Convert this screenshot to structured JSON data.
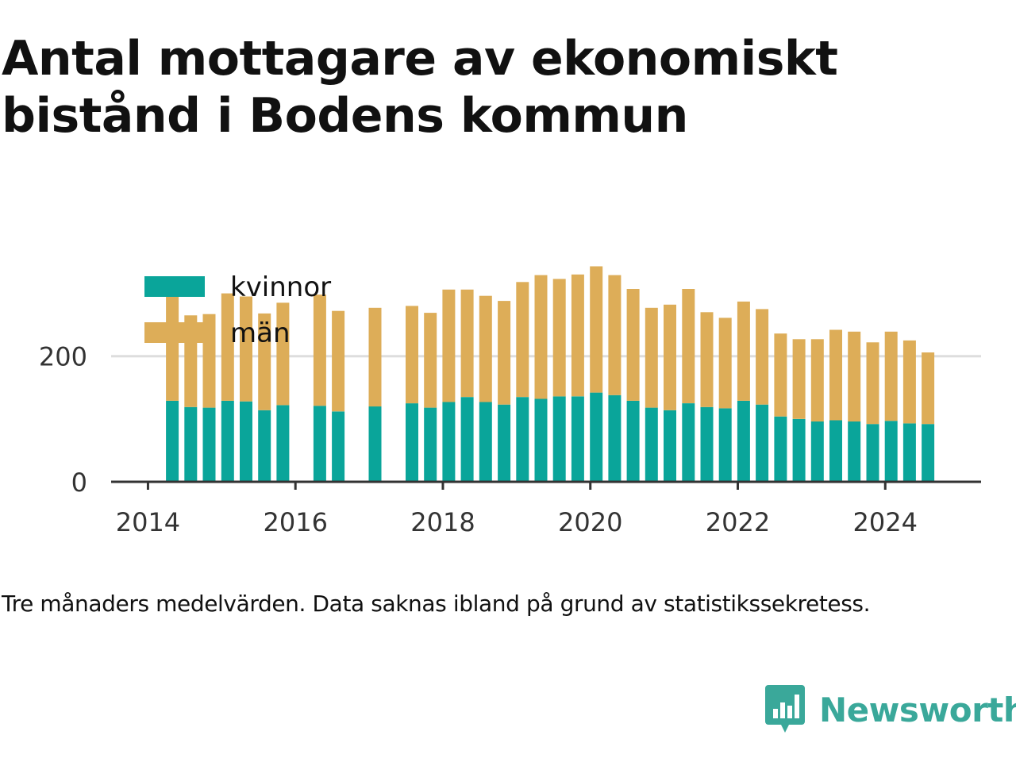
{
  "title": "Antal mottagare av ekonomiskt bistånd i Bodens kommun",
  "caption": "Tre månaders medelvärden. Data saknas ibland på grund av statistikssekretess.",
  "brand": {
    "name": "Newsworthy",
    "icon": "newsworthy-logo-icon",
    "color": "#3aa89a"
  },
  "colors": {
    "kvinnor": "#0aa59a",
    "man": "#ddad58",
    "gridline": "#dddddd",
    "axis": "#333333"
  },
  "chart_data": {
    "type": "bar",
    "stacked": true,
    "title": "",
    "xlabel": "",
    "ylabel": "",
    "ylim": [
      0,
      350
    ],
    "xlim": [
      2013.5,
      2025.3
    ],
    "grid": true,
    "yticks": [
      0,
      200
    ],
    "ytick_labels": [
      "0",
      "200"
    ],
    "xticks": [
      2014,
      2016,
      2018,
      2020,
      2022,
      2024
    ],
    "xtick_labels": [
      "2014",
      "2016",
      "2018",
      "2020",
      "2022",
      "2024"
    ],
    "legend_position": "top-left",
    "x": [
      2014.33,
      2014.58,
      2014.83,
      2015.08,
      2015.33,
      2015.58,
      2015.83,
      2016.33,
      2016.58,
      2017.08,
      2017.58,
      2017.83,
      2018.08,
      2018.33,
      2018.58,
      2018.83,
      2019.08,
      2019.33,
      2019.58,
      2019.83,
      2020.08,
      2020.33,
      2020.58,
      2020.83,
      2021.08,
      2021.33,
      2021.58,
      2021.83,
      2022.08,
      2022.33,
      2022.58,
      2022.83,
      2023.08,
      2023.33,
      2023.58,
      2023.83,
      2024.08,
      2024.33,
      2024.58
    ],
    "series": [
      {
        "name": "kvinnor",
        "values": [
          129,
          119,
          118,
          129,
          128,
          114,
          122,
          121,
          112,
          120,
          125,
          118,
          127,
          135,
          127,
          123,
          135,
          132,
          136,
          136,
          142,
          138,
          129,
          118,
          114,
          125,
          119,
          117,
          129,
          123,
          104,
          100,
          96,
          98,
          96,
          92,
          97,
          93,
          92
        ]
      },
      {
        "name": "män",
        "values": [
          171,
          146,
          149,
          171,
          167,
          154,
          163,
          177,
          160,
          157,
          155,
          151,
          179,
          171,
          169,
          165,
          183,
          197,
          187,
          194,
          201,
          191,
          178,
          159,
          168,
          182,
          151,
          144,
          158,
          152,
          132,
          127,
          131,
          144,
          143,
          130,
          142,
          132,
          114
        ]
      }
    ]
  }
}
